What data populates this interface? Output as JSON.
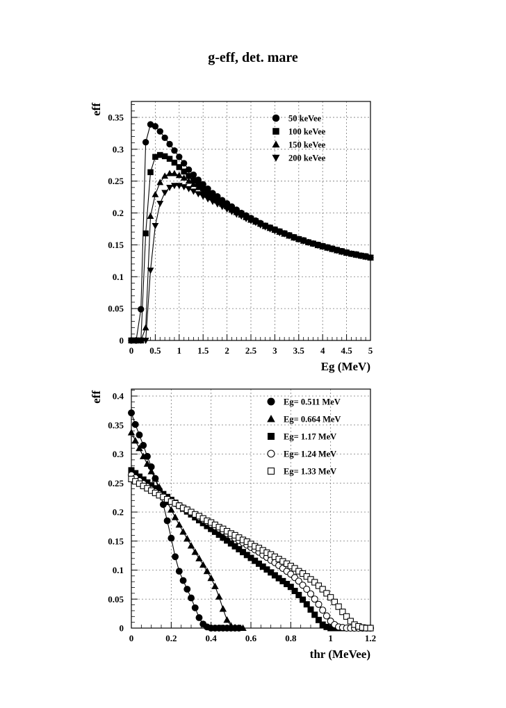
{
  "page": {
    "title": "g-eff, det. mare"
  },
  "chart_data": [
    {
      "type": "line",
      "xlabel": "Eg (MeV)",
      "ylabel": "eff",
      "xlim": [
        0,
        5
      ],
      "ylim": [
        0,
        0.375
      ],
      "xticks": [
        0,
        0.5,
        1,
        1.5,
        2,
        2.5,
        3,
        3.5,
        4,
        4.5,
        5
      ],
      "xtick_labels": [
        "0",
        "0.5",
        "1",
        "1.5",
        "2",
        "2.5",
        "3",
        "3.5",
        "4",
        "4.5",
        "5"
      ],
      "yticks": [
        0,
        0.05,
        0.1,
        0.15,
        0.2,
        0.25,
        0.3,
        0.35
      ],
      "ytick_labels": [
        "0",
        "0.05",
        "0.1",
        "0.15",
        "0.2",
        "0.25",
        "0.3",
        "0.35"
      ],
      "grid": true,
      "legend_position": "top-right",
      "series": [
        {
          "name": "50 keVee",
          "marker": "circle-filled",
          "x": [
            0,
            0.1,
            0.2,
            0.3,
            0.4,
            0.5,
            0.6,
            0.7,
            0.8,
            0.9,
            1.0,
            1.1,
            1.2,
            1.3,
            1.4,
            1.5,
            1.6,
            1.7,
            1.8,
            1.9,
            2.0,
            2.1,
            2.2,
            2.3,
            2.4,
            2.5,
            2.6,
            2.7,
            2.8,
            2.9,
            3.0,
            3.1,
            3.2,
            3.3,
            3.4,
            3.5,
            3.6,
            3.7,
            3.8,
            3.9,
            4.0,
            4.1,
            4.2,
            4.3,
            4.4,
            4.5,
            4.6,
            4.7,
            4.8,
            4.9,
            5.0
          ],
          "y": [
            0,
            0,
            0.049,
            0.311,
            0.339,
            0.336,
            0.328,
            0.318,
            0.308,
            0.298,
            0.288,
            0.278,
            0.268,
            0.26,
            0.252,
            0.245,
            0.238,
            0.231,
            0.226,
            0.22,
            0.215,
            0.21,
            0.205,
            0.2,
            0.196,
            0.192,
            0.188,
            0.184,
            0.18,
            0.177,
            0.174,
            0.171,
            0.168,
            0.165,
            0.162,
            0.159,
            0.157,
            0.154,
            0.152,
            0.15,
            0.148,
            0.146,
            0.144,
            0.142,
            0.14,
            0.138,
            0.136,
            0.135,
            0.133,
            0.132,
            0.13
          ]
        },
        {
          "name": "100 keVee",
          "marker": "square-filled",
          "x": [
            0,
            0.1,
            0.2,
            0.3,
            0.4,
            0.5,
            0.6,
            0.7,
            0.8,
            0.9,
            1.0,
            1.1,
            1.2,
            1.3,
            1.4,
            1.5,
            1.6,
            1.7,
            1.8,
            1.9,
            2.0,
            2.1,
            2.2,
            2.3,
            2.4,
            2.5,
            2.6,
            2.7,
            2.8,
            2.9,
            3.0,
            3.1,
            3.2,
            3.3,
            3.4,
            3.5,
            3.6,
            3.7,
            3.8,
            3.9,
            4.0,
            4.1,
            4.2,
            4.3,
            4.4,
            4.5,
            4.6,
            4.7,
            4.8,
            4.9,
            5.0
          ],
          "y": [
            0,
            0,
            0,
            0.168,
            0.264,
            0.288,
            0.291,
            0.289,
            0.285,
            0.279,
            0.272,
            0.265,
            0.258,
            0.251,
            0.245,
            0.239,
            0.233,
            0.227,
            0.222,
            0.217,
            0.212,
            0.207,
            0.203,
            0.199,
            0.195,
            0.191,
            0.187,
            0.183,
            0.18,
            0.177,
            0.174,
            0.171,
            0.168,
            0.165,
            0.162,
            0.159,
            0.157,
            0.154,
            0.152,
            0.15,
            0.148,
            0.146,
            0.144,
            0.142,
            0.14,
            0.138,
            0.136,
            0.135,
            0.133,
            0.132,
            0.13
          ]
        },
        {
          "name": "150 keVee",
          "marker": "triangle-up-filled",
          "x": [
            0,
            0.1,
            0.2,
            0.3,
            0.4,
            0.5,
            0.6,
            0.7,
            0.8,
            0.9,
            1.0,
            1.1,
            1.2,
            1.3,
            1.4,
            1.5,
            1.6,
            1.7,
            1.8,
            1.9,
            2.0,
            2.1,
            2.2,
            2.3,
            2.4,
            2.5,
            2.6,
            2.7,
            2.8,
            2.9,
            3.0,
            3.1,
            3.2,
            3.3,
            3.4,
            3.5,
            3.6,
            3.7,
            3.8,
            3.9,
            4.0,
            4.1,
            4.2,
            4.3,
            4.4,
            4.5,
            4.6,
            4.7,
            4.8,
            4.9,
            5.0
          ],
          "y": [
            0,
            0,
            0,
            0.02,
            0.195,
            0.229,
            0.248,
            0.258,
            0.262,
            0.262,
            0.259,
            0.255,
            0.25,
            0.245,
            0.24,
            0.234,
            0.229,
            0.224,
            0.219,
            0.214,
            0.21,
            0.205,
            0.201,
            0.197,
            0.193,
            0.189,
            0.186,
            0.183,
            0.179,
            0.176,
            0.173,
            0.17,
            0.167,
            0.164,
            0.161,
            0.159,
            0.156,
            0.154,
            0.152,
            0.149,
            0.147,
            0.145,
            0.143,
            0.141,
            0.139,
            0.137,
            0.136,
            0.134,
            0.133,
            0.131,
            0.13
          ]
        },
        {
          "name": "200 keVee",
          "marker": "triangle-down-filled",
          "x": [
            0,
            0.1,
            0.2,
            0.3,
            0.4,
            0.5,
            0.6,
            0.7,
            0.8,
            0.9,
            1.0,
            1.1,
            1.2,
            1.3,
            1.4,
            1.5,
            1.6,
            1.7,
            1.8,
            1.9,
            2.0,
            2.1,
            2.2,
            2.3,
            2.4,
            2.5,
            2.6,
            2.7,
            2.8,
            2.9,
            3.0,
            3.1,
            3.2,
            3.3,
            3.4,
            3.5,
            3.6,
            3.7,
            3.8,
            3.9,
            4.0,
            4.1,
            4.2,
            4.3,
            4.4,
            4.5,
            4.6,
            4.7,
            4.8,
            4.9,
            5.0
          ],
          "y": [
            0,
            0,
            0,
            0,
            0.11,
            0.18,
            0.215,
            0.232,
            0.24,
            0.243,
            0.243,
            0.241,
            0.238,
            0.234,
            0.23,
            0.226,
            0.222,
            0.218,
            0.214,
            0.21,
            0.206,
            0.202,
            0.198,
            0.195,
            0.191,
            0.188,
            0.185,
            0.181,
            0.178,
            0.175,
            0.172,
            0.169,
            0.167,
            0.164,
            0.161,
            0.159,
            0.156,
            0.154,
            0.152,
            0.149,
            0.147,
            0.145,
            0.143,
            0.141,
            0.139,
            0.137,
            0.136,
            0.134,
            0.133,
            0.131,
            0.13
          ]
        }
      ]
    },
    {
      "type": "line",
      "xlabel": "thr (MeVee)",
      "ylabel": "eff",
      "xlim": [
        0,
        1.2
      ],
      "ylim": [
        0,
        0.412
      ],
      "xticks": [
        0,
        0.2,
        0.4,
        0.6,
        0.8,
        1,
        1.2
      ],
      "xtick_labels": [
        "0",
        "0.2",
        "0.4",
        "0.6",
        "0.8",
        "1",
        "1.2"
      ],
      "yticks": [
        0,
        0.05,
        0.1,
        0.15,
        0.2,
        0.25,
        0.3,
        0.35,
        0.4
      ],
      "ytick_labels": [
        "0",
        "0.05",
        "0.1",
        "0.15",
        "0.2",
        "0.25",
        "0.3",
        "0.35",
        "0.4"
      ],
      "grid": true,
      "legend_position": "top-right",
      "series": [
        {
          "name": "Eg= 0.511 MeV",
          "marker": "circle-filled",
          "x": [
            0,
            0.02,
            0.04,
            0.06,
            0.08,
            0.1,
            0.12,
            0.14,
            0.16,
            0.18,
            0.2,
            0.22,
            0.24,
            0.26,
            0.28,
            0.3,
            0.32,
            0.34,
            0.36,
            0.38,
            0.4,
            0.42,
            0.44,
            0.46,
            0.48,
            0.5,
            0.52,
            0.54
          ],
          "y": [
            0.371,
            0.351,
            0.333,
            0.315,
            0.296,
            0.278,
            0.258,
            0.237,
            0.213,
            0.185,
            0.155,
            0.123,
            0.098,
            0.082,
            0.067,
            0.052,
            0.035,
            0.018,
            0.007,
            0.002,
            0,
            0,
            0,
            0,
            0,
            0,
            0,
            0
          ]
        },
        {
          "name": "Eg= 0.664 MeV",
          "marker": "triangle-up-filled",
          "x": [
            0,
            0.02,
            0.04,
            0.06,
            0.08,
            0.1,
            0.12,
            0.14,
            0.16,
            0.18,
            0.2,
            0.22,
            0.24,
            0.26,
            0.28,
            0.3,
            0.32,
            0.34,
            0.36,
            0.38,
            0.4,
            0.42,
            0.44,
            0.46,
            0.48,
            0.5,
            0.52,
            0.54,
            0.56
          ],
          "y": [
            0.337,
            0.323,
            0.31,
            0.296,
            0.283,
            0.27,
            0.257,
            0.243,
            0.23,
            0.217,
            0.204,
            0.191,
            0.178,
            0.166,
            0.154,
            0.142,
            0.131,
            0.12,
            0.109,
            0.098,
            0.086,
            0.072,
            0.054,
            0.033,
            0.014,
            0.004,
            0.001,
            0,
            0
          ]
        },
        {
          "name": "Eg= 1.17 MeV",
          "marker": "square-filled",
          "x": [
            0,
            0.02,
            0.04,
            0.06,
            0.08,
            0.1,
            0.12,
            0.14,
            0.16,
            0.18,
            0.2,
            0.22,
            0.24,
            0.26,
            0.28,
            0.3,
            0.32,
            0.34,
            0.36,
            0.38,
            0.4,
            0.42,
            0.44,
            0.46,
            0.48,
            0.5,
            0.52,
            0.54,
            0.56,
            0.58,
            0.6,
            0.62,
            0.64,
            0.66,
            0.68,
            0.7,
            0.72,
            0.74,
            0.76,
            0.78,
            0.8,
            0.82,
            0.84,
            0.86,
            0.88,
            0.9,
            0.92,
            0.94,
            0.96,
            0.98,
            1.0,
            1.02,
            1.04,
            1.06,
            1.08,
            1.1,
            1.12,
            1.14,
            1.16,
            1.18,
            1.2
          ],
          "y": [
            0.272,
            0.267,
            0.261,
            0.256,
            0.251,
            0.246,
            0.241,
            0.236,
            0.231,
            0.226,
            0.221,
            0.216,
            0.211,
            0.206,
            0.201,
            0.196,
            0.191,
            0.186,
            0.181,
            0.176,
            0.171,
            0.166,
            0.161,
            0.156,
            0.151,
            0.146,
            0.141,
            0.136,
            0.131,
            0.126,
            0.121,
            0.116,
            0.111,
            0.106,
            0.101,
            0.096,
            0.091,
            0.086,
            0.081,
            0.076,
            0.071,
            0.064,
            0.057,
            0.049,
            0.041,
            0.032,
            0.023,
            0.014,
            0.006,
            0.002,
            0,
            0,
            0,
            0,
            0,
            0,
            0,
            0,
            0,
            0,
            0
          ]
        },
        {
          "name": "Eg= 1.24 MeV",
          "marker": "circle-open",
          "x": [
            0,
            0.02,
            0.04,
            0.06,
            0.08,
            0.1,
            0.12,
            0.14,
            0.16,
            0.18,
            0.2,
            0.22,
            0.24,
            0.26,
            0.28,
            0.3,
            0.32,
            0.34,
            0.36,
            0.38,
            0.4,
            0.42,
            0.44,
            0.46,
            0.48,
            0.5,
            0.52,
            0.54,
            0.56,
            0.58,
            0.6,
            0.62,
            0.64,
            0.66,
            0.68,
            0.7,
            0.72,
            0.74,
            0.76,
            0.78,
            0.8,
            0.82,
            0.84,
            0.86,
            0.88,
            0.9,
            0.92,
            0.94,
            0.96,
            0.98,
            1.0,
            1.02,
            1.04,
            1.06,
            1.08,
            1.1,
            1.12,
            1.14,
            1.16,
            1.18,
            1.2
          ],
          "y": [
            0.264,
            0.259,
            0.254,
            0.249,
            0.244,
            0.239,
            0.235,
            0.231,
            0.227,
            0.223,
            0.219,
            0.215,
            0.211,
            0.207,
            0.203,
            0.199,
            0.195,
            0.191,
            0.187,
            0.183,
            0.179,
            0.175,
            0.171,
            0.167,
            0.163,
            0.159,
            0.155,
            0.151,
            0.147,
            0.143,
            0.139,
            0.135,
            0.131,
            0.126,
            0.122,
            0.117,
            0.113,
            0.108,
            0.103,
            0.098,
            0.093,
            0.087,
            0.081,
            0.074,
            0.067,
            0.059,
            0.05,
            0.041,
            0.031,
            0.021,
            0.012,
            0.006,
            0.002,
            0.001,
            0,
            0,
            0,
            0,
            0,
            0,
            0
          ]
        },
        {
          "name": "Eg= 1.33 MeV",
          "marker": "square-open",
          "x": [
            0,
            0.02,
            0.04,
            0.06,
            0.08,
            0.1,
            0.12,
            0.14,
            0.16,
            0.18,
            0.2,
            0.22,
            0.24,
            0.26,
            0.28,
            0.3,
            0.32,
            0.34,
            0.36,
            0.38,
            0.4,
            0.42,
            0.44,
            0.46,
            0.48,
            0.5,
            0.52,
            0.54,
            0.56,
            0.58,
            0.6,
            0.62,
            0.64,
            0.66,
            0.68,
            0.7,
            0.72,
            0.74,
            0.76,
            0.78,
            0.8,
            0.82,
            0.84,
            0.86,
            0.88,
            0.9,
            0.92,
            0.94,
            0.96,
            0.98,
            1.0,
            1.02,
            1.04,
            1.06,
            1.08,
            1.1,
            1.12,
            1.14,
            1.16,
            1.18,
            1.2
          ],
          "y": [
            0.257,
            0.253,
            0.249,
            0.245,
            0.241,
            0.237,
            0.233,
            0.229,
            0.226,
            0.222,
            0.218,
            0.215,
            0.211,
            0.207,
            0.204,
            0.2,
            0.196,
            0.193,
            0.189,
            0.185,
            0.182,
            0.178,
            0.174,
            0.171,
            0.167,
            0.163,
            0.16,
            0.156,
            0.152,
            0.149,
            0.145,
            0.141,
            0.138,
            0.134,
            0.13,
            0.127,
            0.123,
            0.119,
            0.115,
            0.111,
            0.107,
            0.103,
            0.098,
            0.094,
            0.089,
            0.084,
            0.079,
            0.073,
            0.067,
            0.06,
            0.053,
            0.045,
            0.037,
            0.028,
            0.02,
            0.012,
            0.006,
            0.003,
            0.001,
            0,
            0
          ]
        }
      ]
    }
  ]
}
